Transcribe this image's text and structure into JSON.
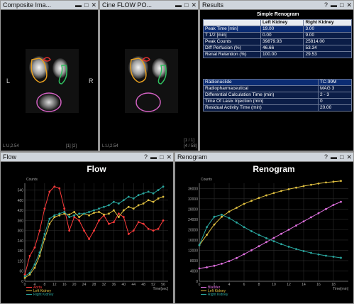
{
  "panels": {
    "composite": {
      "title": "Composite Ima...",
      "side_left": "L",
      "side_right": "R",
      "overlay_bl": "L:U,2.54",
      "overlay_bm": "[1] [2]"
    },
    "cine": {
      "title": "Cine FLOW PO...",
      "overlay_bl": "L:U,2.54",
      "overlay_br1": "[1 / 1]",
      "overlay_br2": "[4 / 58]"
    },
    "results": {
      "title": "Results"
    },
    "flow": {
      "title": "Flow"
    },
    "renogram": {
      "title": "Renogram"
    }
  },
  "window_buttons": {
    "help": "?",
    "min": "▬",
    "max": "□",
    "close": "✕"
  },
  "results_table": {
    "title": "Simple Renogram",
    "headers": [
      "",
      "Left Kidney",
      "Right Kidney"
    ],
    "rows": [
      [
        "Peak Time [min]",
        "19.00",
        "3.00"
      ],
      [
        "T 1/2  [min]",
        "0.00",
        "9.00"
      ],
      [
        "Peak Counts",
        "39879.93",
        "25814.00"
      ],
      [
        "Diff Perfusion (%)",
        "46.66",
        "53.34"
      ],
      [
        "Renal Retention (%)",
        "100.00",
        "29.53"
      ]
    ]
  },
  "info_table": {
    "rows": [
      [
        "Radionuclide",
        "TC-99M"
      ],
      [
        "Radiopharmaceutical",
        "MAG 3"
      ],
      [
        "Differential Calculation Time (min)",
        "2 - 3"
      ],
      [
        "Time Of Lasix Injection (min)",
        "0"
      ],
      [
        "Residual Activity Time  (min)",
        "20.00"
      ]
    ]
  },
  "chart_data": [
    {
      "type": "line",
      "title": "Flow",
      "ylabel": "Counts",
      "xlabel": "Time[sec]",
      "ylim": [
        0,
        580
      ],
      "xlim": [
        0,
        58
      ],
      "yticks": [
        0,
        60,
        120,
        180,
        240,
        300,
        360,
        420,
        480,
        540
      ],
      "xticks": [
        0,
        4,
        8,
        12,
        16,
        20,
        24,
        28,
        32,
        36,
        40,
        44,
        48,
        52,
        56
      ],
      "series": [
        {
          "name": "Aorta",
          "color": "#ff3b3b",
          "x": [
            0,
            2,
            4,
            6,
            8,
            10,
            12,
            14,
            16,
            18,
            20,
            22,
            24,
            26,
            28,
            30,
            32,
            34,
            36,
            38,
            40,
            42,
            44,
            46,
            48,
            50,
            52,
            54,
            56
          ],
          "values": [
            40,
            150,
            200,
            300,
            430,
            530,
            560,
            550,
            430,
            300,
            380,
            360,
            300,
            250,
            300,
            360,
            390,
            340,
            350,
            400,
            380,
            280,
            300,
            350,
            340,
            310,
            300,
            310,
            360
          ]
        },
        {
          "name": "Left Kidney",
          "color": "#e0c040",
          "x": [
            0,
            2,
            4,
            6,
            8,
            10,
            12,
            14,
            16,
            18,
            20,
            22,
            24,
            26,
            28,
            30,
            32,
            34,
            36,
            38,
            40,
            42,
            44,
            46,
            48,
            50,
            52,
            54,
            56
          ],
          "values": [
            20,
            40,
            80,
            150,
            250,
            340,
            380,
            390,
            400,
            395,
            410,
            380,
            400,
            390,
            405,
            410,
            395,
            400,
            420,
            380,
            420,
            440,
            430,
            450,
            460,
            480,
            470,
            490,
            500
          ]
        },
        {
          "name": "Right Kidney",
          "color": "#2aa8a0",
          "x": [
            0,
            2,
            4,
            6,
            8,
            10,
            12,
            14,
            16,
            18,
            20,
            22,
            24,
            26,
            28,
            30,
            32,
            34,
            36,
            38,
            40,
            42,
            44,
            46,
            48,
            50,
            52,
            54,
            56
          ],
          "values": [
            30,
            50,
            100,
            170,
            280,
            370,
            390,
            400,
            410,
            380,
            390,
            400,
            400,
            410,
            420,
            430,
            440,
            450,
            470,
            460,
            480,
            500,
            490,
            510,
            520,
            530,
            520,
            540,
            560
          ]
        }
      ]
    },
    {
      "type": "line",
      "title": "Renogram",
      "ylabel": "Counts",
      "xlabel": "Time[min]",
      "ylim": [
        0,
        38000
      ],
      "xlim": [
        0,
        20
      ],
      "yticks": [
        0,
        4000,
        8000,
        12000,
        16000,
        20000,
        24000,
        28000,
        32000,
        36000
      ],
      "xticks": [
        0,
        2,
        4,
        6,
        8,
        10,
        12,
        14,
        16,
        18
      ],
      "series": [
        {
          "name": "Bladder",
          "color": "#e070e0",
          "x": [
            0,
            1,
            2,
            3,
            4,
            5,
            6,
            7,
            8,
            9,
            10,
            11,
            12,
            13,
            14,
            15,
            16,
            17,
            18,
            19
          ],
          "values": [
            5000,
            5400,
            6000,
            6800,
            7800,
            9000,
            10500,
            12000,
            13600,
            15200,
            16800,
            18400,
            20000,
            21600,
            23200,
            24800,
            26400,
            28000,
            29600,
            30800
          ]
        },
        {
          "name": "Left Kidney",
          "color": "#e0c040",
          "x": [
            0,
            1,
            2,
            3,
            4,
            5,
            6,
            7,
            8,
            9,
            10,
            11,
            12,
            13,
            14,
            15,
            16,
            17,
            18,
            19
          ],
          "values": [
            14000,
            18000,
            22000,
            25000,
            27000,
            28500,
            30000,
            31200,
            32300,
            33300,
            34200,
            35000,
            35700,
            36300,
            36900,
            37400,
            37900,
            38300,
            38600,
            38900
          ]
        },
        {
          "name": "Right Kidney",
          "color": "#2aa8a0",
          "x": [
            0,
            1,
            2,
            3,
            4,
            5,
            6,
            7,
            8,
            9,
            10,
            11,
            12,
            13,
            14,
            15,
            16,
            17,
            18,
            19
          ],
          "values": [
            14000,
            21000,
            25000,
            25800,
            24500,
            22800,
            21000,
            19400,
            18000,
            16700,
            15500,
            14400,
            13400,
            12500,
            11700,
            11000,
            10400,
            9900,
            9500,
            9100
          ]
        }
      ]
    }
  ]
}
